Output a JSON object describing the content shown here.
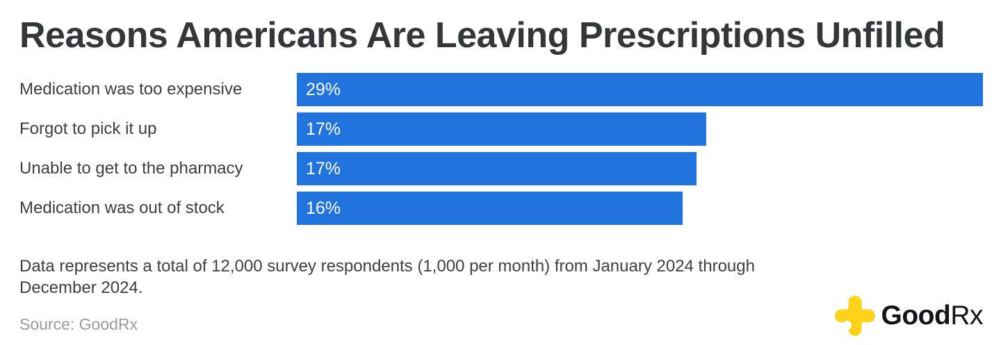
{
  "title": "Reasons Americans Are Leaving Prescriptions Unfilled",
  "chart_data": {
    "type": "bar",
    "orientation": "horizontal",
    "title": "Reasons Americans Are Leaving Prescriptions Unfilled",
    "categories": [
      "Medication was too expensive",
      "Forgot to pick it up",
      "Unable to get to the pharmacy",
      "Medication was out of stock"
    ],
    "values": [
      29,
      17,
      17,
      16
    ],
    "value_labels": [
      "29%",
      "17%",
      "17%",
      "16%"
    ],
    "bar_lengths_pct": [
      29,
      17.3,
      16.9,
      16.3
    ],
    "xlim": [
      0,
      29
    ],
    "bar_color": "#2173de",
    "value_label_color": "#ffffff",
    "grid": false,
    "legend": false,
    "value_label_position": "inside-left"
  },
  "note": "Data represents a total of 12,000 survey respondents (1,000 per month) from January 2024 through December 2024.",
  "source": "Source: GoodRx",
  "logo": {
    "text_good": "Good",
    "text_rx": "Rx",
    "cross_color": "#fdd319",
    "text_color": "#121418"
  },
  "colors": {
    "bar_blue": "#2173de",
    "title_text": "#33373a",
    "label_text": "#3a3e41",
    "note_text": "#3c4043",
    "source_text": "#9b9b9b",
    "goodrx_yellow": "#fdd319",
    "background": "#ffffff"
  }
}
